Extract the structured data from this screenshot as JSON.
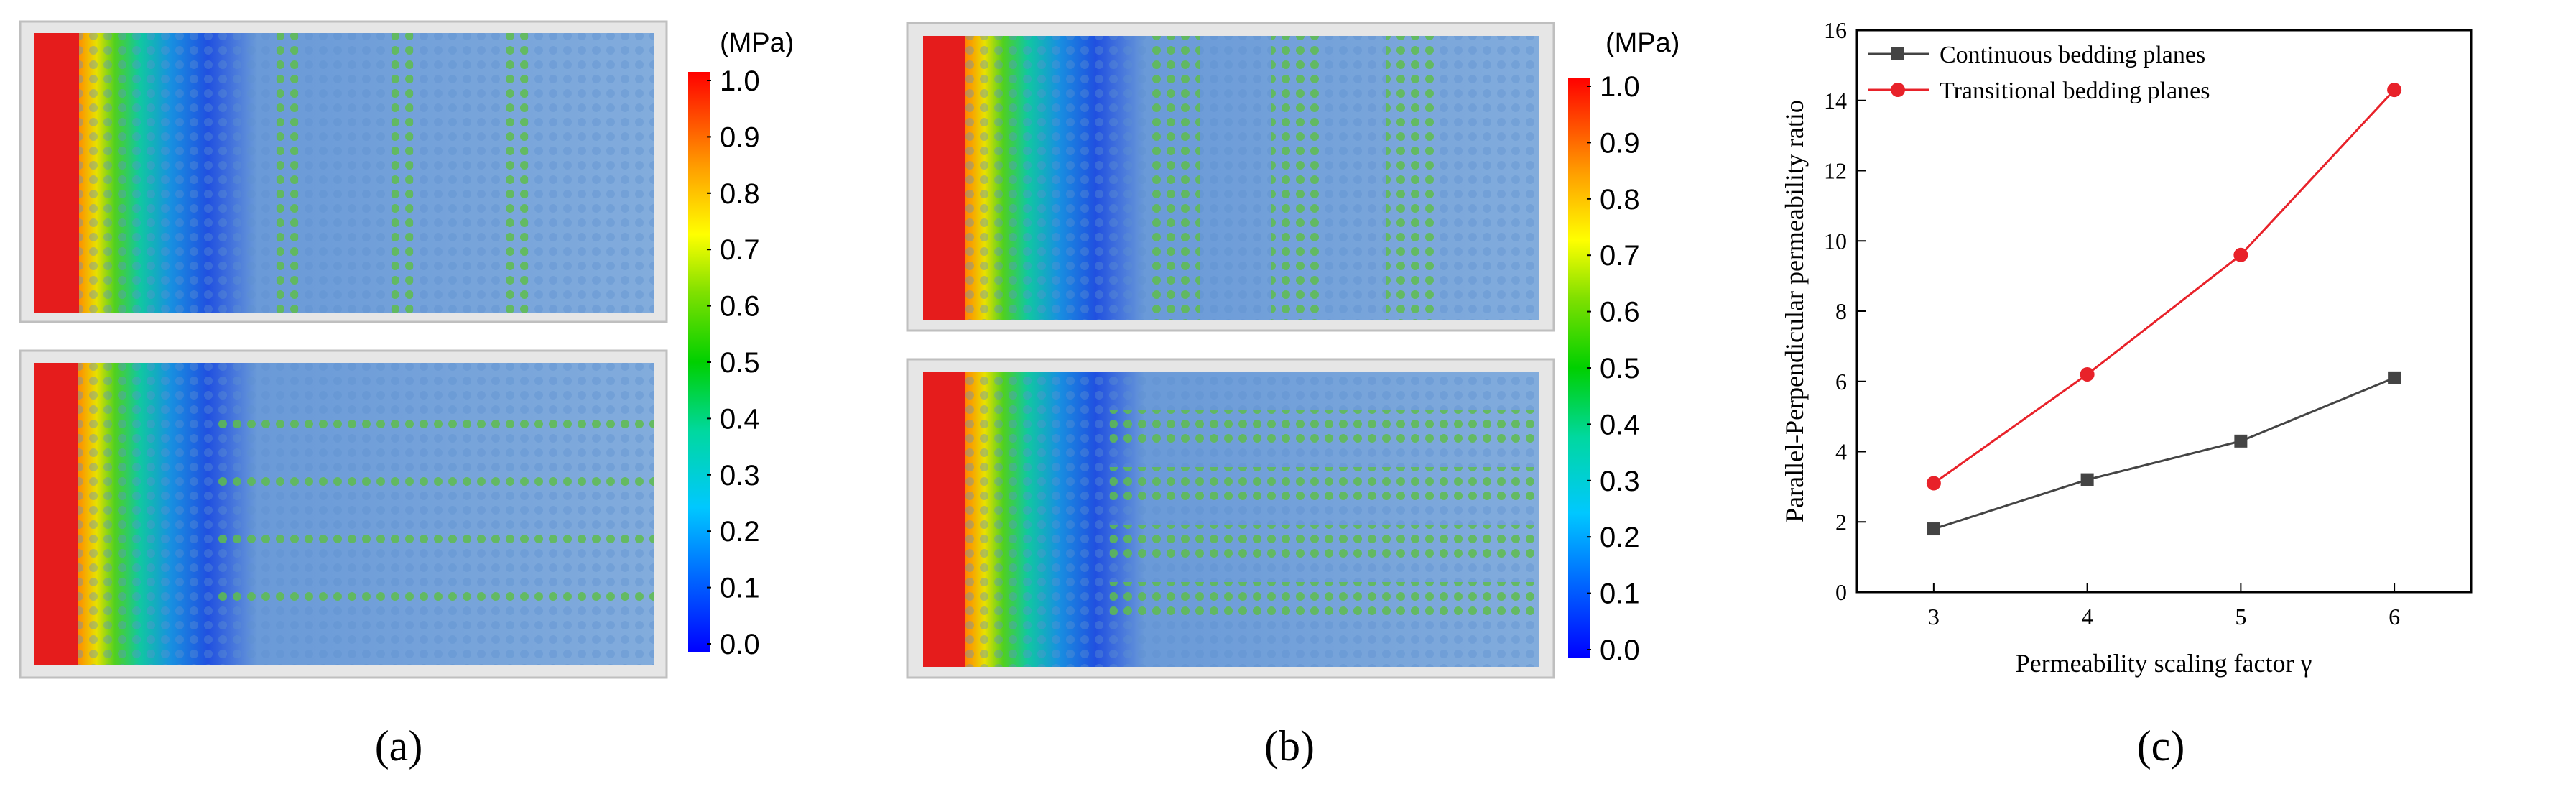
{
  "panels": {
    "a": {
      "label": "(a)"
    },
    "b": {
      "label": "(b)"
    },
    "c": {
      "label": "(c)"
    }
  },
  "colorbar": {
    "unit": "(MPa)",
    "ticks": [
      "1.0",
      "0.9",
      "0.8",
      "0.7",
      "0.6",
      "0.5",
      "0.4",
      "0.3",
      "0.2",
      "0.1",
      "0.0"
    ],
    "colors": [
      "#0000ff",
      "#00a0ff",
      "#00e6e6",
      "#00d060",
      "#00e000",
      "#a0e000",
      "#ffff00",
      "#ffb000",
      "#ff6000",
      "#ff0000"
    ]
  },
  "simulation": {
    "high_pressure_color": "#e82020",
    "matrix_color": "#7aa7d9",
    "bedding_color": "#86d35a"
  },
  "chart_data": {
    "type": "line",
    "x": [
      3,
      4,
      5,
      6
    ],
    "xlabel": "Permeability scaling factor γ",
    "ylabel": "Parallel-Perpendicular permeability ratio",
    "xlim": [
      2.5,
      6.5
    ],
    "ylim": [
      0,
      16
    ],
    "xticks": [
      "3",
      "4",
      "5",
      "6"
    ],
    "yticks": [
      "0",
      "2",
      "4",
      "6",
      "8",
      "10",
      "12",
      "14",
      "16"
    ],
    "grid": false,
    "legend_position": "top-left",
    "series": [
      {
        "name": "Continuous bedding planes",
        "values": [
          1.8,
          3.2,
          4.3,
          6.1
        ],
        "color": "#444444",
        "marker": "square"
      },
      {
        "name": "Transitional bedding planes",
        "values": [
          3.1,
          6.2,
          9.6,
          14.3
        ],
        "color": "#e8222a",
        "marker": "circle"
      }
    ]
  }
}
